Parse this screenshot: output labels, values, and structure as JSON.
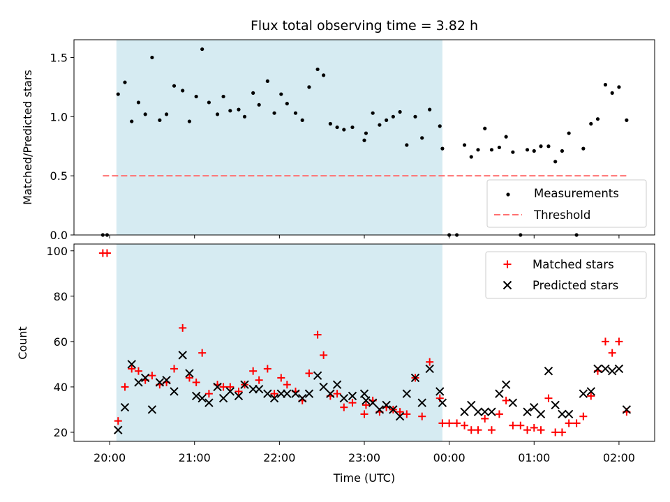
{
  "chart_data": {
    "title": "Flux total observing time = 3.82 h",
    "xlabel": "Time (UTC)",
    "x_tick_labels": [
      "20:00",
      "21:00",
      "22:00",
      "23:00",
      "00:00",
      "01:00",
      "02:00"
    ],
    "x_ticks_hours": [
      20,
      21,
      22,
      23,
      24,
      25,
      26
    ],
    "x_range_hours": [
      19.58,
      26.42
    ],
    "shaded_interval_hours": [
      20.08,
      23.92
    ],
    "shade_color": "#add8e6",
    "panels": [
      {
        "type": "scatter",
        "ylabel": "Matched/Predicted stars",
        "ylim": [
          0,
          1.65
        ],
        "y_ticks": [
          0.0,
          0.5,
          1.0,
          1.5
        ],
        "y_tick_labels": [
          "0.0",
          "0.5",
          "1.0",
          "1.5"
        ],
        "legend_position": "lower-right",
        "threshold": {
          "name": "Threshold",
          "value": 0.5,
          "x_start": 19.92,
          "x_end": 26.1,
          "color": "#ff7070"
        },
        "series": [
          {
            "name": "Measurements",
            "color": "#000000",
            "points": [
              [
                19.92,
                0.0
              ],
              [
                19.97,
                0.0
              ],
              [
                20.1,
                1.19
              ],
              [
                20.18,
                1.29
              ],
              [
                20.26,
                0.96
              ],
              [
                20.34,
                1.12
              ],
              [
                20.42,
                1.02
              ],
              [
                20.5,
                1.5
              ],
              [
                20.59,
                0.97
              ],
              [
                20.67,
                1.02
              ],
              [
                20.76,
                1.26
              ],
              [
                20.86,
                1.22
              ],
              [
                20.94,
                0.96
              ],
              [
                21.02,
                1.17
              ],
              [
                21.09,
                1.57
              ],
              [
                21.17,
                1.12
              ],
              [
                21.27,
                1.02
              ],
              [
                21.34,
                1.17
              ],
              [
                21.42,
                1.05
              ],
              [
                21.52,
                1.06
              ],
              [
                21.59,
                1.0
              ],
              [
                21.69,
                1.2
              ],
              [
                21.76,
                1.1
              ],
              [
                21.86,
                1.3
              ],
              [
                21.94,
                1.03
              ],
              [
                22.02,
                1.19
              ],
              [
                22.09,
                1.11
              ],
              [
                22.19,
                1.03
              ],
              [
                22.27,
                0.97
              ],
              [
                22.35,
                1.25
              ],
              [
                22.45,
                1.4
              ],
              [
                22.52,
                1.35
              ],
              [
                22.6,
                0.94
              ],
              [
                22.68,
                0.91
              ],
              [
                22.76,
                0.89
              ],
              [
                22.86,
                0.91
              ],
              [
                23.0,
                0.8
              ],
              [
                23.02,
                0.86
              ],
              [
                23.1,
                1.03
              ],
              [
                23.18,
                0.93
              ],
              [
                23.26,
                0.97
              ],
              [
                23.34,
                1.0
              ],
              [
                23.42,
                1.04
              ],
              [
                23.5,
                0.76
              ],
              [
                23.6,
                1.0
              ],
              [
                23.68,
                0.82
              ],
              [
                23.77,
                1.06
              ],
              [
                23.89,
                0.92
              ],
              [
                23.92,
                0.73
              ],
              [
                24.0,
                0.0
              ],
              [
                24.09,
                0.0
              ],
              [
                24.18,
                0.76
              ],
              [
                24.26,
                0.66
              ],
              [
                24.34,
                0.72
              ],
              [
                24.42,
                0.9
              ],
              [
                24.5,
                0.72
              ],
              [
                24.59,
                0.74
              ],
              [
                24.67,
                0.83
              ],
              [
                24.75,
                0.7
              ],
              [
                24.84,
                0.0
              ],
              [
                24.92,
                0.72
              ],
              [
                25.0,
                0.71
              ],
              [
                25.08,
                0.75
              ],
              [
                25.17,
                0.75
              ],
              [
                25.25,
                0.62
              ],
              [
                25.33,
                0.71
              ],
              [
                25.41,
                0.86
              ],
              [
                25.5,
                0.0
              ],
              [
                25.58,
                0.73
              ],
              [
                25.67,
                0.94
              ],
              [
                25.75,
                0.98
              ],
              [
                25.84,
                1.27
              ],
              [
                25.92,
                1.2
              ],
              [
                26.0,
                1.25
              ],
              [
                26.09,
                0.97
              ]
            ]
          }
        ]
      },
      {
        "type": "scatter",
        "ylabel": "Count",
        "ylim": [
          16,
          103
        ],
        "y_ticks": [
          20,
          40,
          60,
          80,
          100
        ],
        "y_tick_labels": [
          "20",
          "40",
          "60",
          "80",
          "100"
        ],
        "legend_position": "upper-right",
        "series": [
          {
            "name": "Matched stars",
            "color": "#ff0000",
            "marker": "plus",
            "points": [
              [
                19.92,
                99
              ],
              [
                19.97,
                99
              ],
              [
                20.1,
                25
              ],
              [
                20.18,
                40
              ],
              [
                20.26,
                48
              ],
              [
                20.34,
                47
              ],
              [
                20.42,
                43
              ],
              [
                20.5,
                45
              ],
              [
                20.59,
                41
              ],
              [
                20.67,
                42
              ],
              [
                20.76,
                48
              ],
              [
                20.86,
                66
              ],
              [
                20.94,
                44
              ],
              [
                21.02,
                42
              ],
              [
                21.09,
                55
              ],
              [
                21.17,
                37
              ],
              [
                21.27,
                41
              ],
              [
                21.34,
                40
              ],
              [
                21.42,
                40
              ],
              [
                21.52,
                38
              ],
              [
                21.59,
                41
              ],
              [
                21.69,
                47
              ],
              [
                21.76,
                43
              ],
              [
                21.86,
                48
              ],
              [
                21.94,
                37
              ],
              [
                22.02,
                44
              ],
              [
                22.09,
                41
              ],
              [
                22.19,
                38
              ],
              [
                22.27,
                34
              ],
              [
                22.35,
                46
              ],
              [
                22.45,
                63
              ],
              [
                22.52,
                54
              ],
              [
                22.6,
                36
              ],
              [
                22.68,
                37
              ],
              [
                22.76,
                31
              ],
              [
                22.86,
                33
              ],
              [
                23.0,
                28
              ],
              [
                23.02,
                32
              ],
              [
                23.1,
                34
              ],
              [
                23.18,
                29
              ],
              [
                23.26,
                31
              ],
              [
                23.34,
                30
              ],
              [
                23.42,
                29
              ],
              [
                23.5,
                28
              ],
              [
                23.6,
                44
              ],
              [
                23.68,
                27
              ],
              [
                23.77,
                51
              ],
              [
                23.89,
                35
              ],
              [
                23.92,
                24
              ],
              [
                24.0,
                24
              ],
              [
                24.09,
                24
              ],
              [
                24.18,
                23
              ],
              [
                24.26,
                21
              ],
              [
                24.34,
                21
              ],
              [
                24.42,
                26
              ],
              [
                24.5,
                21
              ],
              [
                24.59,
                28
              ],
              [
                24.67,
                34
              ],
              [
                24.75,
                23
              ],
              [
                24.84,
                23
              ],
              [
                24.92,
                21
              ],
              [
                25.0,
                22
              ],
              [
                25.08,
                21
              ],
              [
                25.17,
                35
              ],
              [
                25.25,
                20
              ],
              [
                25.33,
                20
              ],
              [
                25.41,
                24
              ],
              [
                25.5,
                24
              ],
              [
                25.58,
                27
              ],
              [
                25.67,
                36
              ],
              [
                25.75,
                47
              ],
              [
                25.84,
                60
              ],
              [
                25.92,
                55
              ],
              [
                26.0,
                60
              ],
              [
                26.09,
                29
              ]
            ]
          },
          {
            "name": "Predicted stars",
            "color": "#000000",
            "marker": "x",
            "points": [
              [
                20.1,
                21
              ],
              [
                20.18,
                31
              ],
              [
                20.26,
                50
              ],
              [
                20.34,
                42
              ],
              [
                20.42,
                44
              ],
              [
                20.5,
                30
              ],
              [
                20.59,
                42
              ],
              [
                20.67,
                43
              ],
              [
                20.76,
                38
              ],
              [
                20.86,
                54
              ],
              [
                20.94,
                46
              ],
              [
                21.02,
                36
              ],
              [
                21.09,
                35
              ],
              [
                21.17,
                33
              ],
              [
                21.27,
                40
              ],
              [
                21.34,
                35
              ],
              [
                21.42,
                38
              ],
              [
                21.52,
                36
              ],
              [
                21.59,
                41
              ],
              [
                21.69,
                39
              ],
              [
                21.76,
                39
              ],
              [
                21.86,
                37
              ],
              [
                21.94,
                35
              ],
              [
                22.02,
                37
              ],
              [
                22.09,
                37
              ],
              [
                22.19,
                37
              ],
              [
                22.27,
                35
              ],
              [
                22.35,
                37
              ],
              [
                22.45,
                45
              ],
              [
                22.52,
                40
              ],
              [
                22.6,
                37
              ],
              [
                22.68,
                41
              ],
              [
                22.76,
                35
              ],
              [
                22.86,
                36
              ],
              [
                23.0,
                37
              ],
              [
                23.02,
                34
              ],
              [
                23.1,
                33
              ],
              [
                23.18,
                30
              ],
              [
                23.26,
                32
              ],
              [
                23.34,
                30
              ],
              [
                23.42,
                27
              ],
              [
                23.5,
                37
              ],
              [
                23.6,
                44
              ],
              [
                23.68,
                33
              ],
              [
                23.77,
                48
              ],
              [
                23.89,
                38
              ],
              [
                23.92,
                33
              ],
              [
                24.18,
                29
              ],
              [
                24.26,
                32
              ],
              [
                24.34,
                29
              ],
              [
                24.42,
                29
              ],
              [
                24.5,
                29
              ],
              [
                24.59,
                37
              ],
              [
                24.67,
                41
              ],
              [
                24.75,
                33
              ],
              [
                24.92,
                29
              ],
              [
                25.0,
                31
              ],
              [
                25.08,
                28
              ],
              [
                25.17,
                47
              ],
              [
                25.25,
                32
              ],
              [
                25.33,
                28
              ],
              [
                25.41,
                28
              ],
              [
                25.58,
                37
              ],
              [
                25.67,
                38
              ],
              [
                25.75,
                48
              ],
              [
                25.84,
                48
              ],
              [
                25.92,
                47
              ],
              [
                26.0,
                48
              ],
              [
                26.09,
                30
              ]
            ]
          }
        ]
      }
    ]
  }
}
